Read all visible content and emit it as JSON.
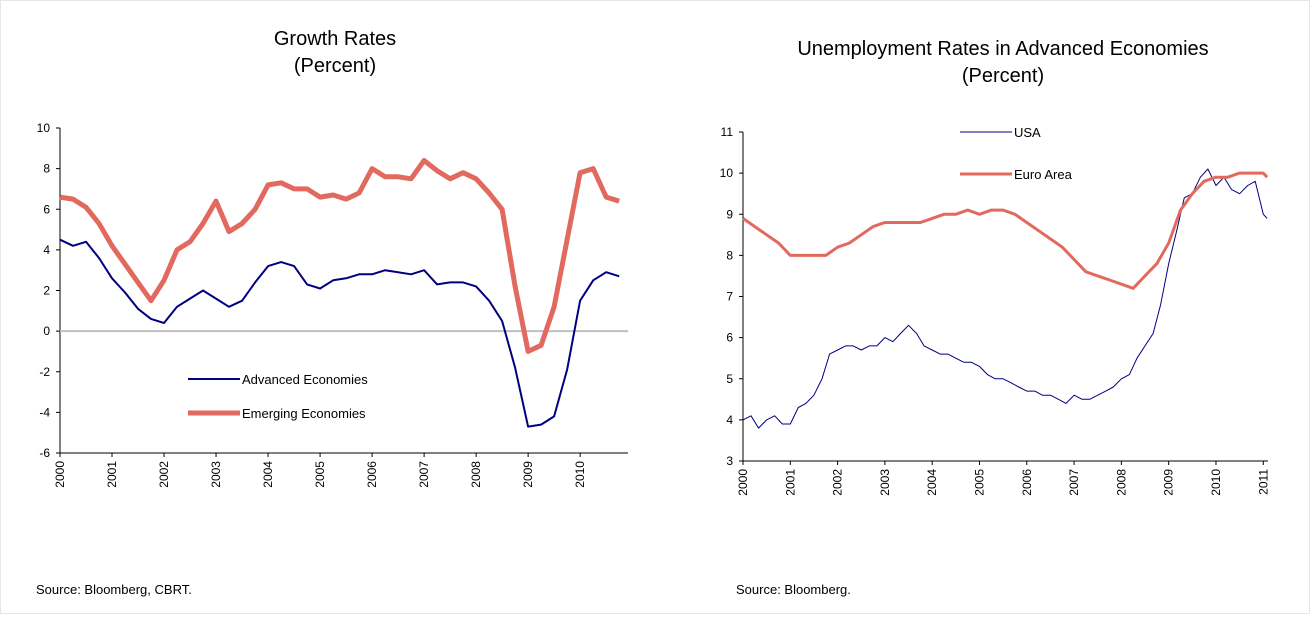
{
  "sources": {
    "left": "Source: Bloomberg, CBRT.",
    "right": "Source: Bloomberg."
  },
  "chart_data": [
    {
      "type": "line",
      "title": "Growth Rates",
      "subtitle": "(Percent)",
      "xlabel": "",
      "ylabel": "",
      "ylim": [
        -6,
        10
      ],
      "yticks": [
        -6,
        -4,
        -2,
        0,
        2,
        4,
        6,
        8,
        10
      ],
      "xlim": [
        2000,
        2010.92
      ],
      "xticks": [
        "2000",
        "2001",
        "2002",
        "2003",
        "2004",
        "2005",
        "2006",
        "2007",
        "2008",
        "2009",
        "2010"
      ],
      "zero_line": true,
      "grid": false,
      "legend_position": "bottom-center",
      "series": [
        {
          "name": "Advanced Economies",
          "color": "#000080",
          "x": [
            2000.0,
            2000.25,
            2000.5,
            2000.75,
            2001.0,
            2001.25,
            2001.5,
            2001.75,
            2002.0,
            2002.25,
            2002.5,
            2002.75,
            2003.0,
            2003.25,
            2003.5,
            2003.75,
            2004.0,
            2004.25,
            2004.5,
            2004.75,
            2005.0,
            2005.25,
            2005.5,
            2005.75,
            2006.0,
            2006.25,
            2006.5,
            2006.75,
            2007.0,
            2007.25,
            2007.5,
            2007.75,
            2008.0,
            2008.25,
            2008.5,
            2008.75,
            2009.0,
            2009.25,
            2009.5,
            2009.75,
            2010.0,
            2010.25,
            2010.5,
            2010.75
          ],
          "values": [
            4.5,
            4.2,
            4.4,
            3.6,
            2.6,
            1.9,
            1.1,
            0.6,
            0.4,
            1.2,
            1.6,
            2.0,
            1.6,
            1.2,
            1.5,
            2.4,
            3.2,
            3.4,
            3.2,
            2.3,
            2.1,
            2.5,
            2.6,
            2.8,
            2.8,
            3.0,
            2.9,
            2.8,
            3.0,
            2.3,
            2.4,
            2.4,
            2.2,
            1.5,
            0.5,
            -1.8,
            -4.7,
            -4.6,
            -4.2,
            -1.9,
            1.5,
            2.5,
            2.9,
            2.7
          ]
        },
        {
          "name": "Emerging Economies",
          "color": "#e2695e",
          "x": [
            2000.0,
            2000.25,
            2000.5,
            2000.75,
            2001.0,
            2001.25,
            2001.5,
            2001.75,
            2002.0,
            2002.25,
            2002.5,
            2002.75,
            2003.0,
            2003.25,
            2003.5,
            2003.75,
            2004.0,
            2004.25,
            2004.5,
            2004.75,
            2005.0,
            2005.25,
            2005.5,
            2005.75,
            2006.0,
            2006.25,
            2006.5,
            2006.75,
            2007.0,
            2007.25,
            2007.5,
            2007.75,
            2008.0,
            2008.25,
            2008.5,
            2008.75,
            2009.0,
            2009.25,
            2009.5,
            2009.75,
            2010.0,
            2010.25,
            2010.5,
            2010.75
          ],
          "values": [
            6.6,
            6.5,
            6.1,
            5.3,
            4.2,
            3.3,
            2.4,
            1.5,
            2.5,
            4.0,
            4.4,
            5.3,
            6.4,
            4.9,
            5.3,
            6.0,
            7.2,
            7.3,
            7.0,
            7.0,
            6.6,
            6.7,
            6.5,
            6.8,
            8.0,
            7.6,
            7.6,
            7.5,
            8.4,
            7.9,
            7.5,
            7.8,
            7.5,
            6.8,
            6.0,
            2.2,
            -1.0,
            -0.7,
            1.2,
            4.5,
            7.8,
            8.0,
            6.6,
            6.4
          ]
        }
      ]
    },
    {
      "type": "line",
      "title": "Unemployment Rates in Advanced Economies",
      "subtitle": "(Percent)",
      "xlabel": "",
      "ylabel": "",
      "ylim": [
        3,
        11
      ],
      "yticks": [
        3,
        4,
        5,
        6,
        7,
        8,
        9,
        10,
        11
      ],
      "xlim": [
        2000,
        2011.1
      ],
      "xticks": [
        "2000",
        "2001",
        "2002",
        "2003",
        "2004",
        "2005",
        "2006",
        "2007",
        "2008",
        "2009",
        "2010",
        "2011"
      ],
      "grid": false,
      "legend_position": "top-center",
      "series": [
        {
          "name": "USA",
          "color": "#000080",
          "x": [
            2000.0,
            2000.17,
            2000.33,
            2000.5,
            2000.67,
            2000.83,
            2001.0,
            2001.17,
            2001.33,
            2001.5,
            2001.67,
            2001.83,
            2002.0,
            2002.17,
            2002.33,
            2002.5,
            2002.67,
            2002.83,
            2003.0,
            2003.17,
            2003.33,
            2003.5,
            2003.67,
            2003.83,
            2004.0,
            2004.17,
            2004.33,
            2004.5,
            2004.67,
            2004.83,
            2005.0,
            2005.17,
            2005.33,
            2005.5,
            2005.67,
            2005.83,
            2006.0,
            2006.17,
            2006.33,
            2006.5,
            2006.67,
            2006.83,
            2007.0,
            2007.17,
            2007.33,
            2007.5,
            2007.67,
            2007.83,
            2008.0,
            2008.17,
            2008.33,
            2008.5,
            2008.67,
            2008.83,
            2009.0,
            2009.17,
            2009.33,
            2009.5,
            2009.67,
            2009.83,
            2010.0,
            2010.17,
            2010.33,
            2010.5,
            2010.67,
            2010.83,
            2011.0,
            2011.08
          ],
          "values": [
            4.0,
            4.1,
            3.8,
            4.0,
            4.1,
            3.9,
            3.9,
            4.3,
            4.4,
            4.6,
            5.0,
            5.6,
            5.7,
            5.8,
            5.8,
            5.7,
            5.8,
            5.8,
            6.0,
            5.9,
            6.1,
            6.3,
            6.1,
            5.8,
            5.7,
            5.6,
            5.6,
            5.5,
            5.4,
            5.4,
            5.3,
            5.1,
            5.0,
            5.0,
            4.9,
            4.8,
            4.7,
            4.7,
            4.6,
            4.6,
            4.5,
            4.4,
            4.6,
            4.5,
            4.5,
            4.6,
            4.7,
            4.8,
            5.0,
            5.1,
            5.5,
            5.8,
            6.1,
            6.8,
            7.8,
            8.6,
            9.4,
            9.5,
            9.9,
            10.1,
            9.7,
            9.9,
            9.6,
            9.5,
            9.7,
            9.8,
            9.0,
            8.9
          ]
        },
        {
          "name": "Euro Area",
          "color": "#e2695e",
          "x": [
            2000.0,
            2000.25,
            2000.5,
            2000.75,
            2001.0,
            2001.25,
            2001.5,
            2001.75,
            2002.0,
            2002.25,
            2002.5,
            2002.75,
            2003.0,
            2003.25,
            2003.5,
            2003.75,
            2004.0,
            2004.25,
            2004.5,
            2004.75,
            2005.0,
            2005.25,
            2005.5,
            2005.75,
            2006.0,
            2006.25,
            2006.5,
            2006.75,
            2007.0,
            2007.25,
            2007.5,
            2007.75,
            2008.0,
            2008.25,
            2008.5,
            2008.75,
            2009.0,
            2009.25,
            2009.5,
            2009.75,
            2010.0,
            2010.25,
            2010.5,
            2010.75,
            2011.0,
            2011.08
          ],
          "values": [
            8.9,
            8.7,
            8.5,
            8.3,
            8.0,
            8.0,
            8.0,
            8.0,
            8.2,
            8.3,
            8.5,
            8.7,
            8.8,
            8.8,
            8.8,
            8.8,
            8.9,
            9.0,
            9.0,
            9.1,
            9.0,
            9.1,
            9.1,
            9.0,
            8.8,
            8.6,
            8.4,
            8.2,
            7.9,
            7.6,
            7.5,
            7.4,
            7.3,
            7.2,
            7.5,
            7.8,
            8.3,
            9.1,
            9.5,
            9.8,
            9.9,
            9.9,
            10.0,
            10.0,
            10.0,
            9.9
          ]
        }
      ]
    }
  ]
}
